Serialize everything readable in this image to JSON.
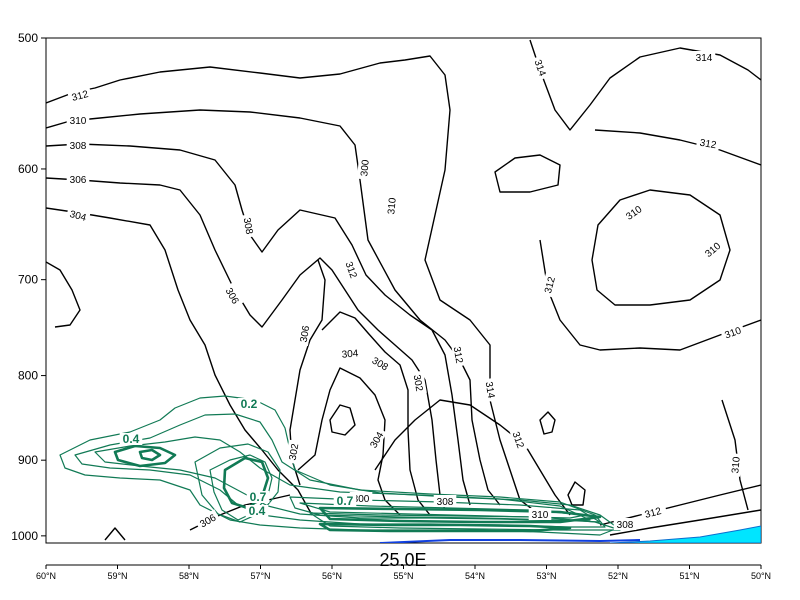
{
  "chart_data": {
    "type": "contour",
    "section_label": "25.0E",
    "y_axis": {
      "ticks": [
        "500",
        "600",
        "700",
        "800",
        "900",
        "1000"
      ],
      "values": [
        500,
        600,
        700,
        800,
        900,
        1000
      ],
      "range": [
        500,
        1010
      ],
      "scale": "log-pressure"
    },
    "x_axis": {
      "ticks": [
        "60°N",
        "59°N",
        "58°N",
        "57°N",
        "56°N",
        "55°N",
        "54°N",
        "53°N",
        "52°N",
        "51°N",
        "50°N"
      ],
      "values": [
        60,
        59,
        58,
        57,
        56,
        55,
        54,
        53,
        52,
        51,
        50
      ],
      "range": [
        60,
        50
      ]
    },
    "series": [
      {
        "color": "#000000",
        "labels": [
          "312",
          "310",
          "308",
          "306",
          "304",
          "314",
          "310",
          "312",
          "308",
          "306",
          "304",
          "306",
          "308",
          "302",
          "304",
          "300",
          "310",
          "312",
          "314",
          "312",
          "314",
          "312",
          "310",
          "310",
          "312",
          "310",
          "312",
          "302",
          "300",
          "306",
          "308",
          "310",
          "312",
          "308"
        ]
      },
      {
        "color": "#117a55",
        "labels": [
          "0.2",
          "0.4",
          "0.7",
          "0.7",
          "0.4"
        ]
      }
    ],
    "fill_color": "#00e5ff",
    "grid": false
  }
}
